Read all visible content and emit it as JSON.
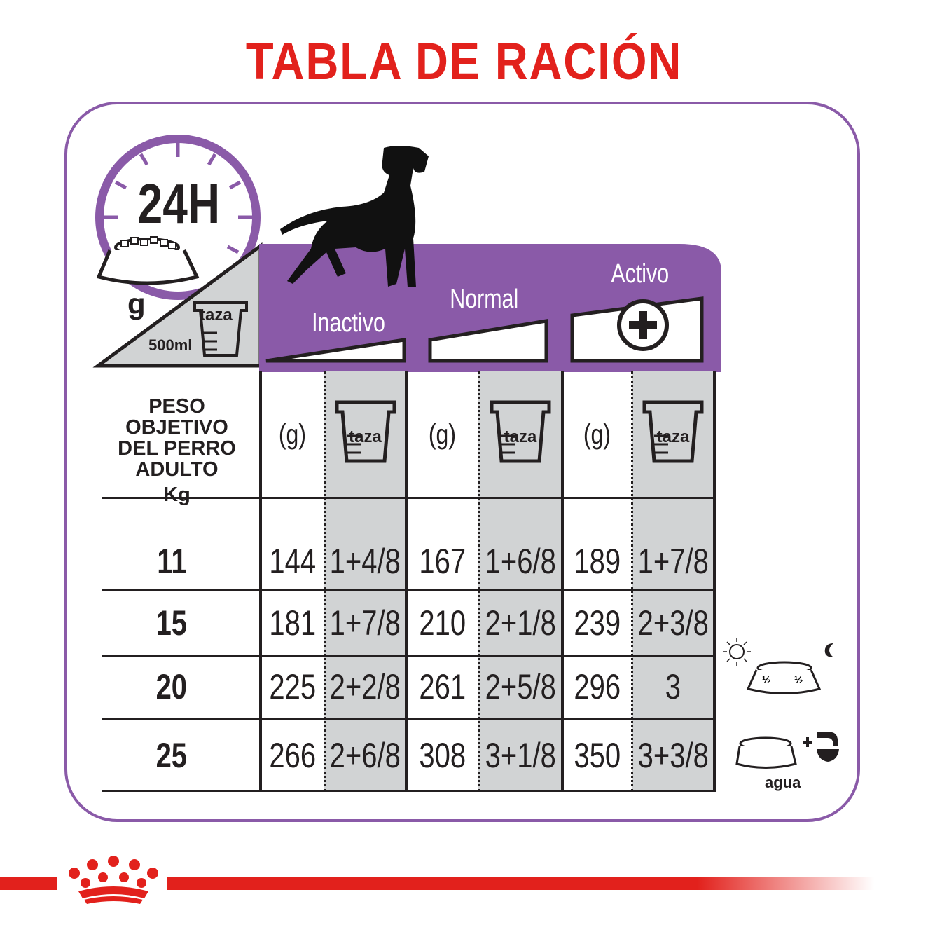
{
  "title": "TABLA DE RACIÓN",
  "icons": {
    "clock_label": "24H",
    "grams_label": "g",
    "cup_label": "taza",
    "cup_volume": "500ml"
  },
  "activity_levels": [
    "Inactivo",
    "Normal",
    "Activo"
  ],
  "table": {
    "weight_header": [
      "PESO OBJETIVO",
      "DEL PERRO",
      "ADULTO",
      "Kg"
    ],
    "grams_header": "(g)",
    "cup_header": "taza",
    "rows": [
      {
        "weight": "11",
        "values": [
          "144",
          "1+4/8",
          "167",
          "1+6/8",
          "189",
          "1+7/8"
        ]
      },
      {
        "weight": "15",
        "values": [
          "181",
          "1+7/8",
          "210",
          "2+1/8",
          "239",
          "2+3/8"
        ]
      },
      {
        "weight": "20",
        "values": [
          "225",
          "2+2/8",
          "261",
          "2+5/8",
          "296",
          "3"
        ]
      },
      {
        "weight": "25",
        "values": [
          "266",
          "2+6/8",
          "308",
          "3+1/8",
          "350",
          "3+3/8"
        ]
      }
    ]
  },
  "side_notes": {
    "half_label": "½",
    "water_label": "agua"
  },
  "colors": {
    "title_red": "#e2211c",
    "purple": "#8a5aa8",
    "gray": "#d1d3d4",
    "black": "#231f20"
  }
}
